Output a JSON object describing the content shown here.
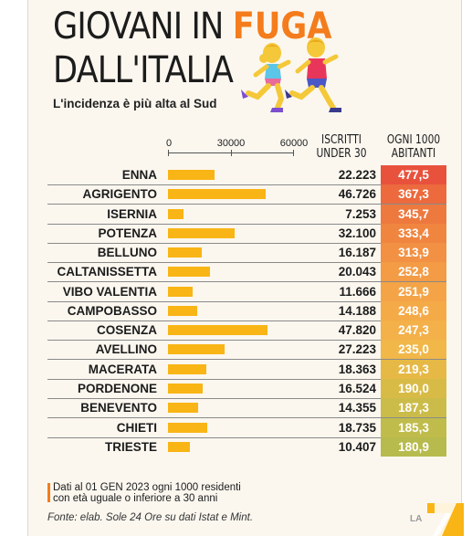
{
  "header": {
    "title_part1": "GIOVANI IN ",
    "title_accent": "FUGA",
    "title_line2": "DALL'ITALIA",
    "subtitle": "L'incidenza è più alta al Sud"
  },
  "columns": {
    "enrolled_line1": "ISCRITTI",
    "enrolled_line2": "UNDER 30",
    "rate_line1": "OGNI 1000",
    "rate_line2": "ABITANTI"
  },
  "chart_data": {
    "type": "bar",
    "orientation": "horizontal",
    "axis_ticks": [
      "0",
      "30000",
      "60000"
    ],
    "xlim": [
      0,
      60000
    ],
    "categories": [
      "ENNA",
      "AGRIGENTO",
      "ISERNIA",
      "POTENZA",
      "BELLUNO",
      "CALTANISSETTA",
      "VIBO VALENTIA",
      "CAMPOBASSO",
      "COSENZA",
      "AVELLINO",
      "MACERATA",
      "PORDENONE",
      "BENEVENTO",
      "CHIETI",
      "TRIESTE"
    ],
    "values": [
      22223,
      46726,
      7253,
      32100,
      16187,
      20043,
      11666,
      14188,
      47820,
      27223,
      18363,
      16524,
      14355,
      18735,
      10407
    ],
    "value_labels": [
      "22.223",
      "46.726",
      "7.253",
      "32.100",
      "16.187",
      "20.043",
      "11.666",
      "14.188",
      "47.820",
      "27.223",
      "18.363",
      "16.524",
      "14.355",
      "18.735",
      "10.407"
    ],
    "rates": [
      "477,5",
      "367,3",
      "345,7",
      "333,4",
      "313,9",
      "252,8",
      "251,9",
      "248,6",
      "247,3",
      "235,0",
      "219,3",
      "190,0",
      "187,3",
      "185,3",
      "180,9"
    ],
    "rate_colors": [
      "#e8523d",
      "#ec6a3d",
      "#ee793f",
      "#f08540",
      "#f29043",
      "#f39b45",
      "#f4a447",
      "#f5aa48",
      "#f4b049",
      "#f1b748",
      "#e6b946",
      "#d8bb47",
      "#cbbc4a",
      "#c0bc4b",
      "#b7bb4d"
    ],
    "bar_color": "#f9b515"
  },
  "footer": {
    "note_line1": "Dati al 01 GEN 2023 ogni 1000 residenti",
    "note_line2": "con età uguale o inferiore a 30 anni",
    "source": "Fonte: elab. Sole 24 Ore su dati Istat e Mint.",
    "logo_text": "LA"
  },
  "colors": {
    "accent": "#f47c1c",
    "background": "#fbf7ef"
  }
}
